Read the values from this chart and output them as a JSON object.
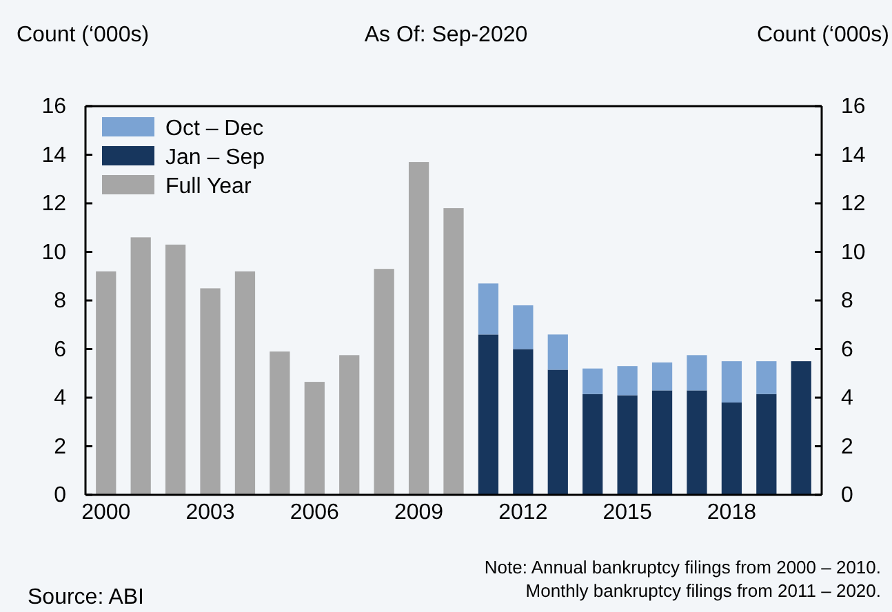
{
  "chart_data": {
    "type": "bar",
    "stacked": true,
    "title": "As Of: Sep-2020",
    "ylabel": "Count (‘000s)",
    "y2label": "Count (‘000s)",
    "categories": [
      "2000",
      null,
      null,
      "2003",
      null,
      null,
      "2006",
      null,
      null,
      "2009",
      null,
      null,
      "2012",
      null,
      null,
      "2015",
      null,
      null,
      "2018",
      null,
      null
    ],
    "series": [
      {
        "name": "Full Year",
        "color": "#a6a6a6",
        "values": [
          9.2,
          10.6,
          10.3,
          8.5,
          9.2,
          5.9,
          4.65,
          5.75,
          9.3,
          13.7,
          11.8,
          null,
          null,
          null,
          null,
          null,
          null,
          null,
          null,
          null,
          null
        ]
      },
      {
        "name": "Jan – Sep",
        "color": "#17365d",
        "values": [
          null,
          null,
          null,
          null,
          null,
          null,
          null,
          null,
          null,
          null,
          null,
          6.6,
          6.0,
          5.15,
          4.15,
          4.1,
          4.3,
          4.3,
          3.8,
          4.15,
          5.5
        ]
      },
      {
        "name": "Oct – Dec",
        "color": "#7ba3d3",
        "values": [
          null,
          null,
          null,
          null,
          null,
          null,
          null,
          null,
          null,
          null,
          null,
          2.1,
          1.8,
          1.45,
          1.05,
          1.2,
          1.15,
          1.45,
          1.7,
          1.35,
          null
        ]
      }
    ],
    "ylim": [
      0,
      16
    ],
    "yticks": [
      0,
      2,
      4,
      6,
      8,
      10,
      12,
      14,
      16
    ],
    "y2lim": [
      0,
      16
    ],
    "y2ticks": [
      0,
      2,
      4,
      6,
      8,
      10,
      12,
      14,
      16
    ],
    "legend": "top left",
    "grid": false,
    "annotations": [
      "Source: ABI",
      "Note: Annual bankruptcy filings from 2000 – 2010.",
      "Monthly bankruptcy filings from 2011 – 2020."
    ]
  }
}
